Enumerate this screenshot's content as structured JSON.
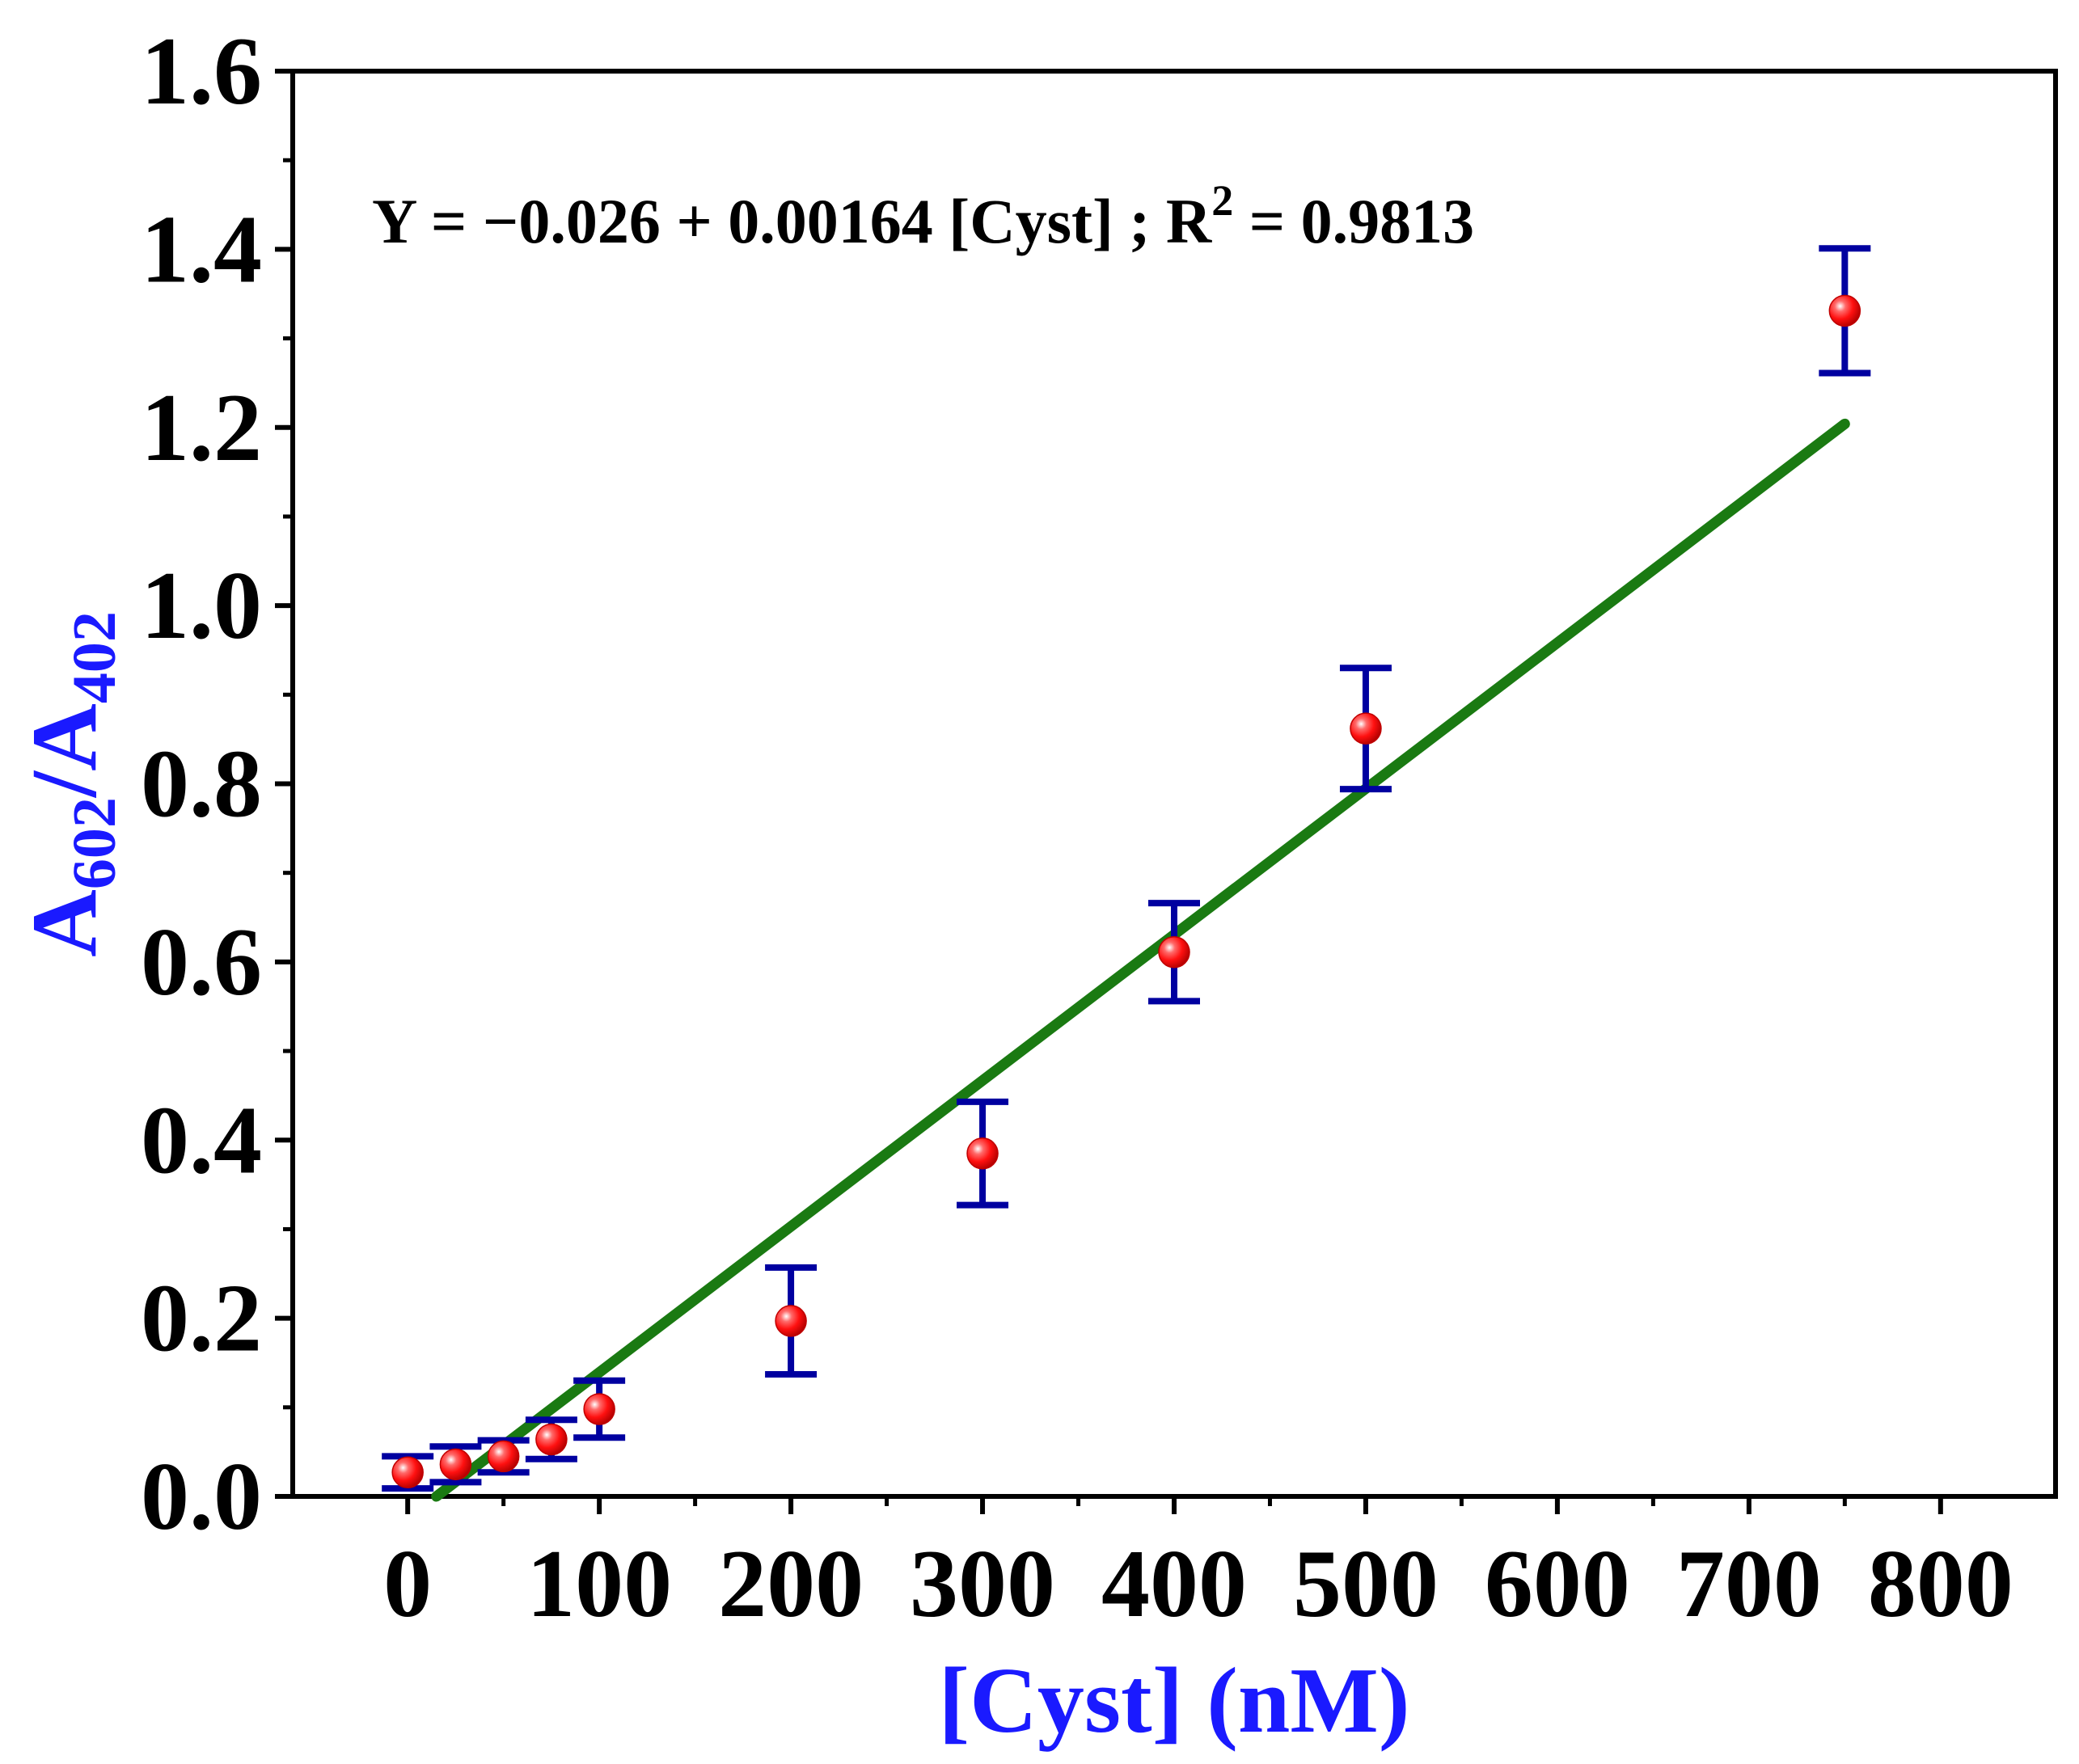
{
  "chart_data": {
    "type": "scatter",
    "title": "",
    "xlabel": "[Cyst] (nM)",
    "ylabel": {
      "A1": "A",
      "sub1": "602",
      "slash": "/",
      "A2": "A",
      "sub2": "402"
    },
    "xlim": [
      -60,
      860
    ],
    "ylim": [
      0,
      1.6
    ],
    "x_ticks": [
      0,
      100,
      200,
      300,
      400,
      500,
      600,
      700,
      800
    ],
    "y_ticks": [
      0.0,
      0.2,
      0.4,
      0.6,
      0.8,
      1.0,
      1.2,
      1.4,
      1.6
    ],
    "x_tick_labels": [
      "0",
      "100",
      "200",
      "300",
      "400",
      "500",
      "600",
      "700",
      "800"
    ],
    "y_tick_labels": [
      "0.0",
      "0.2",
      "0.4",
      "0.6",
      "0.8",
      "1.0",
      "1.2",
      "1.4",
      "1.6"
    ],
    "grid": false,
    "series": [
      {
        "name": "A602/A402",
        "marker": "circle",
        "x": [
          0,
          25,
          50,
          75,
          100,
          200,
          300,
          400,
          500,
          750
        ],
        "y": [
          0.027,
          0.036,
          0.045,
          0.064,
          0.098,
          0.197,
          0.385,
          0.611,
          0.862,
          1.331
        ],
        "err": [
          0.018,
          0.02,
          0.018,
          0.022,
          0.032,
          0.06,
          0.058,
          0.055,
          0.068,
          0.07
        ]
      }
    ],
    "fit": {
      "name": "linear fit",
      "x_start": 15,
      "x_end": 750,
      "y_start": 0.0,
      "y_end": 1.204,
      "equation": {
        "prefix": "Y = ",
        "body": "−0.026 + 0.00164 [Cyst] ; R",
        "sup": "2",
        "suffix": " = 0.9813"
      }
    },
    "colors": {
      "marker": "#ff1010",
      "errorbar": "#0000a0",
      "fit": "#1a7a12",
      "axis_title": "#1a1aff",
      "axis": "#000000"
    }
  }
}
